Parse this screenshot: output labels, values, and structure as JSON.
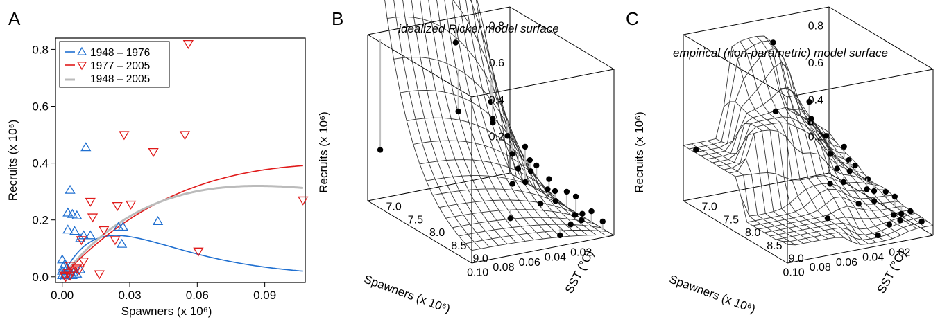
{
  "panels": {
    "a": {
      "letter": "A"
    },
    "b": {
      "letter": "B",
      "subtitle": "idealized Ricker model surface"
    },
    "c": {
      "letter": "C",
      "subtitle": "empirical (non-parametric) model surface"
    }
  },
  "colors": {
    "early": "#1f6fd0",
    "late": "#e01a1a",
    "all": "#bbbbbb",
    "surface": "#333333",
    "stem": "#c0c0c0"
  },
  "chart_data": [
    {
      "type": "scatter",
      "panel": "A",
      "xlabel": "Spawners (x 10⁶)",
      "ylabel": "Recruits (x 10⁶)",
      "xlim": [
        -0.003,
        0.108
      ],
      "ylim": [
        -0.02,
        0.84
      ],
      "xticks": [
        "0.00",
        "0.03",
        "0.06",
        "0.09"
      ],
      "xtick_values": [
        0,
        0.03,
        0.06,
        0.09
      ],
      "yticks": [
        "0.0",
        "0.2",
        "0.4",
        "0.6",
        "0.8"
      ],
      "ytick_values": [
        0,
        0.2,
        0.4,
        0.6,
        0.8
      ],
      "legend_position": "top-left",
      "legend": [
        {
          "label": "1948 – 1976",
          "color": "#1f6fd0",
          "marker": "triangle-up"
        },
        {
          "label": "1977 – 2005",
          "color": "#e01a1a",
          "marker": "triangle-down"
        },
        {
          "label": "1948 – 2005",
          "color": "#bbbbbb",
          "marker": "none"
        }
      ],
      "series": [
        {
          "name": "1948 – 1976",
          "marker": "triangle-up",
          "color": "#1f6fd0",
          "points": [
            [
              0.0105,
              0.455
            ],
            [
              0.0035,
              0.305
            ],
            [
              0.0025,
              0.225
            ],
            [
              0.0045,
              0.22
            ],
            [
              0.0065,
              0.215
            ],
            [
              0.0025,
              0.165
            ],
            [
              0.0055,
              0.16
            ],
            [
              0.0095,
              0.145
            ],
            [
              0.0125,
              0.145
            ],
            [
              0.008,
              0.135
            ],
            [
              0.025,
              0.175
            ],
            [
              0.027,
              0.175
            ],
            [
              0.0425,
              0.195
            ],
            [
              0.0265,
              0.115
            ],
            [
              0.0,
              0.06
            ],
            [
              0.0012,
              0.045
            ],
            [
              0.0005,
              0.035
            ],
            [
              0.002,
              0.03
            ],
            [
              0.0,
              0.02
            ],
            [
              0.003,
              0.02
            ],
            [
              0.005,
              0.015
            ],
            [
              0.0065,
              0.01
            ],
            [
              0.0015,
              0.01
            ],
            [
              0.0,
              0.005
            ],
            [
              0.008,
              0.025
            ],
            [
              0.0045,
              0.005
            ],
            [
              0.001,
              0.0
            ]
          ]
        },
        {
          "name": "1977 – 2005",
          "marker": "triangle-down",
          "color": "#e01a1a",
          "points": [
            [
              0.056,
              0.82
            ],
            [
              0.0275,
              0.5
            ],
            [
              0.0545,
              0.5
            ],
            [
              0.0405,
              0.44
            ],
            [
              0.0125,
              0.265
            ],
            [
              0.0305,
              0.255
            ],
            [
              0.0245,
              0.25
            ],
            [
              0.0135,
              0.21
            ],
            [
              0.0185,
              0.165
            ],
            [
              0.0235,
              0.13
            ],
            [
              0.0085,
              0.13
            ],
            [
              0.0095,
              0.055
            ],
            [
              0.107,
              0.27
            ],
            [
              0.0605,
              0.09
            ],
            [
              0.0165,
              0.01
            ],
            [
              0.0035,
              0.04
            ],
            [
              0.0065,
              0.03
            ],
            [
              0.0045,
              0.02
            ],
            [
              0.0025,
              0.015
            ],
            [
              0.001,
              0.005
            ],
            [
              0.0015,
              0.0
            ],
            [
              0.0075,
              0.025
            ],
            [
              0.0035,
              0.005
            ]
          ]
        },
        {
          "name": "Ricker fit 1948 – 1976",
          "type": "line",
          "color": "#1f6fd0",
          "a": 16.6,
          "b": 42.0,
          "x_range": [
            0,
            0.107
          ]
        },
        {
          "name": "Ricker fit 1977 – 2005",
          "type": "line",
          "color": "#e01a1a",
          "a": 8.6,
          "b": 8.0,
          "x_range": [
            0,
            0.107
          ]
        },
        {
          "name": "Ricker fit 1948 – 2005",
          "type": "line",
          "color": "#bbbbbb",
          "a": 10.0,
          "b": 11.5,
          "x_range": [
            0,
            0.107
          ]
        }
      ]
    },
    {
      "type": "surface",
      "panel": "B",
      "title": "idealized Ricker model surface",
      "xlabel": "Spawners (x 10⁶)",
      "ylabel": "SST (°C)",
      "zlabel": "Recruits (x 10⁶)",
      "xticks": [
        "0.10",
        "0.08",
        "0.06",
        "0.04",
        "0.02"
      ],
      "yticks": [
        "7.0",
        "7.5",
        "8.0",
        "8.5",
        "9.0"
      ],
      "zticks": [
        "0.2",
        "0.4",
        "0.6",
        "0.8"
      ],
      "xlim": [
        0,
        0.11
      ],
      "ylim": [
        6.8,
        9.2
      ],
      "zlim": [
        0,
        0.9
      ],
      "grid_size": [
        16,
        16
      ],
      "surface_model": "ricker",
      "a": 9.0,
      "b": 9.0,
      "sst_coef": -1.4,
      "sst_ref": 8.0,
      "points": [
        [
          0.107,
          7.0,
          0.3
        ],
        [
          0.052,
          7.1,
          0.82
        ],
        [
          0.06,
          7.4,
          0.5
        ],
        [
          0.04,
          7.6,
          0.44
        ],
        [
          0.028,
          7.2,
          0.48
        ],
        [
          0.012,
          7.1,
          0.26
        ],
        [
          0.02,
          7.0,
          0.35
        ],
        [
          0.025,
          7.6,
          0.25
        ],
        [
          0.013,
          7.8,
          0.2
        ],
        [
          0.045,
          8.2,
          0.2
        ],
        [
          0.01,
          8.0,
          0.15
        ],
        [
          0.03,
          8.4,
          0.1
        ],
        [
          0.005,
          7.3,
          0.22
        ],
        [
          0.008,
          7.5,
          0.18
        ],
        [
          0.006,
          8.5,
          0.12
        ],
        [
          0.004,
          8.8,
          0.08
        ],
        [
          0.002,
          9.0,
          0.05
        ],
        [
          0.01,
          8.6,
          0.04
        ],
        [
          0.015,
          8.9,
          0.06
        ],
        [
          0.003,
          8.2,
          0.1
        ],
        [
          0.002,
          7.9,
          0.06
        ],
        [
          0.001,
          7.7,
          0.04
        ],
        [
          0.004,
          7.4,
          0.1
        ],
        [
          0.007,
          7.2,
          0.09
        ],
        [
          0.02,
          8.8,
          0.03
        ],
        [
          0.035,
          9.0,
          0.02
        ],
        [
          0.06,
          8.6,
          0.09
        ],
        [
          0.015,
          8.3,
          0.08
        ],
        [
          0.001,
          8.5,
          0.02
        ],
        [
          0.025,
          7.9,
          0.14
        ]
      ]
    },
    {
      "type": "surface",
      "panel": "C",
      "title": "empirical (non-parametric) model surface",
      "xlabel": "Spawners (x 10⁶)",
      "ylabel": "SST (°C)",
      "zlabel": "Recruits (x 10⁶)",
      "xticks": [
        "0.10",
        "0.08",
        "0.06",
        "0.04",
        "0.02"
      ],
      "yticks": [
        "7.0",
        "7.5",
        "8.0",
        "8.5",
        "9.0"
      ],
      "zticks": [
        "0.2",
        "0.4",
        "0.6",
        "0.8"
      ],
      "xlim": [
        0,
        0.11
      ],
      "ylim": [
        6.8,
        9.2
      ],
      "zlim": [
        0,
        0.9
      ],
      "grid_size": [
        18,
        18
      ],
      "surface_model": "empirical",
      "points": [
        [
          0.107,
          7.0,
          0.3
        ],
        [
          0.052,
          7.1,
          0.82
        ],
        [
          0.06,
          7.4,
          0.5
        ],
        [
          0.04,
          7.6,
          0.44
        ],
        [
          0.028,
          7.2,
          0.48
        ],
        [
          0.012,
          7.1,
          0.26
        ],
        [
          0.02,
          7.0,
          0.35
        ],
        [
          0.025,
          7.6,
          0.25
        ],
        [
          0.013,
          7.8,
          0.2
        ],
        [
          0.045,
          8.2,
          0.2
        ],
        [
          0.01,
          8.0,
          0.15
        ],
        [
          0.03,
          8.4,
          0.1
        ],
        [
          0.005,
          7.3,
          0.22
        ],
        [
          0.008,
          7.5,
          0.18
        ],
        [
          0.006,
          8.5,
          0.12
        ],
        [
          0.004,
          8.8,
          0.08
        ],
        [
          0.002,
          9.0,
          0.05
        ],
        [
          0.01,
          8.6,
          0.04
        ],
        [
          0.015,
          8.9,
          0.06
        ],
        [
          0.003,
          8.2,
          0.1
        ],
        [
          0.002,
          7.9,
          0.06
        ],
        [
          0.001,
          7.7,
          0.04
        ],
        [
          0.004,
          7.4,
          0.1
        ],
        [
          0.007,
          7.2,
          0.09
        ],
        [
          0.02,
          8.8,
          0.03
        ],
        [
          0.035,
          9.0,
          0.02
        ],
        [
          0.06,
          8.6,
          0.09
        ],
        [
          0.015,
          8.3,
          0.08
        ],
        [
          0.001,
          8.5,
          0.02
        ],
        [
          0.025,
          7.9,
          0.14
        ]
      ]
    }
  ]
}
